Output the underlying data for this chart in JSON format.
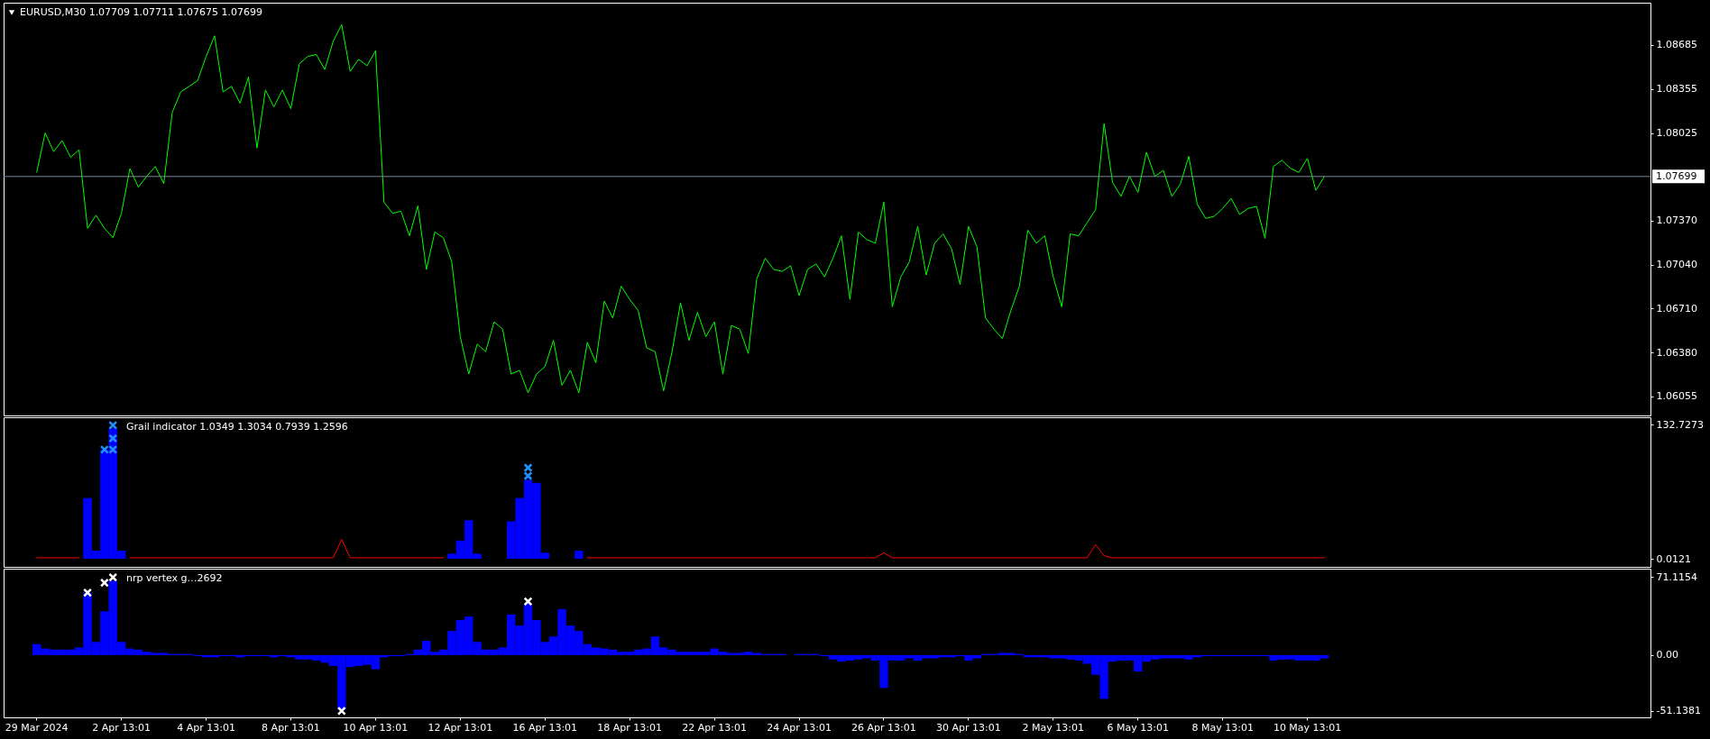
{
  "chart_data": [
    {
      "type": "line",
      "title": "EURUSD,M30 1.07709 1.07711 1.07675 1.07699",
      "categories": [
        null,
        null,
        null,
        null,
        null,
        null,
        null,
        null,
        null,
        null,
        null,
        null,
        null,
        null,
        null,
        null,
        null,
        null,
        null,
        null,
        null,
        null,
        null,
        null,
        null,
        null,
        null,
        null,
        null,
        null,
        null,
        null,
        null,
        null,
        null,
        null,
        null,
        null,
        null,
        null,
        null,
        null,
        null,
        null,
        null,
        null,
        null,
        null,
        null,
        null,
        null,
        null,
        null,
        null,
        null,
        null,
        null,
        null,
        null,
        null,
        null,
        null,
        null,
        null,
        null,
        null,
        null,
        null,
        null,
        null,
        null,
        null,
        null,
        null,
        null,
        null,
        null,
        null,
        null,
        null,
        null,
        null,
        null,
        null,
        null,
        null,
        null,
        null,
        null,
        null,
        null,
        null,
        null,
        null,
        null,
        null,
        null,
        null,
        null,
        null,
        null,
        null,
        null,
        null,
        null,
        null,
        null,
        null,
        null,
        null,
        null,
        null,
        null,
        null,
        null,
        null,
        null,
        null,
        null,
        null,
        null,
        null,
        null,
        null,
        null,
        null,
        null,
        null,
        null,
        null,
        null,
        null,
        null,
        null,
        null,
        null,
        null,
        null,
        null,
        null,
        null,
        null,
        null,
        null,
        null,
        null,
        null,
        null,
        null,
        null,
        null,
        null,
        null,
        null,
        null,
        null,
        null,
        null,
        null,
        null,
        null,
        null,
        null,
        null,
        null,
        null,
        null,
        null,
        null,
        null,
        null,
        null,
        null,
        null,
        null,
        null,
        null,
        null,
        null,
        null,
        null,
        null,
        null,
        null,
        null,
        null,
        null,
        null,
        null,
        null,
        null
      ],
      "series": [
        {
          "color": "#00ff00",
          "values": [
            1.07731,
            1.08025,
            1.07885,
            1.07968,
            1.07843,
            1.07899,
            1.07311,
            1.07409,
            1.07311,
            1.07241,
            1.07423,
            1.07758,
            1.07619,
            1.07702,
            1.07773,
            1.07646,
            1.08178,
            1.08332,
            1.08374,
            1.08417,
            1.08598,
            1.08752,
            1.08332,
            1.08374,
            1.08248,
            1.08444,
            1.07912,
            1.08346,
            1.0822,
            1.08346,
            1.08207,
            1.08543,
            1.08598,
            1.08612,
            1.085,
            1.0871,
            1.08836,
            1.08486,
            1.08576,
            1.08528,
            1.0864,
            1.07507,
            1.07423,
            1.07439,
            1.07255,
            1.07479,
            1.07003,
            1.07283,
            1.07241,
            1.07059,
            1.065,
            1.0622,
            1.06444,
            1.06388,
            1.06611,
            1.06556,
            1.0622,
            1.06248,
            1.0608,
            1.0622,
            1.06276,
            1.06472,
            1.06136,
            1.06248,
            1.0608,
            1.06458,
            1.06304,
            1.06766,
            1.0664,
            1.06877,
            1.06779,
            1.06696,
            1.06416,
            1.06388,
            1.06094,
            1.06388,
            1.06752,
            1.06472,
            1.06682,
            1.065,
            1.06611,
            1.0622,
            1.06584,
            1.06556,
            1.06374,
            1.06933,
            1.07087,
            1.07003,
            1.06989,
            1.07031,
            1.06808,
            1.07003,
            1.07045,
            1.06947,
            1.07087,
            1.07255,
            1.06779,
            1.07283,
            1.07227,
            1.07199,
            1.07507,
            1.06723,
            1.06947,
            1.07059,
            1.07325,
            1.06962,
            1.07199,
            1.07269,
            1.07157,
            1.06891,
            1.07325,
            1.07171,
            1.0664,
            1.06556,
            1.06486,
            1.06696,
            1.06877,
            1.07297,
            1.07199,
            1.07255,
            1.06947,
            1.06723,
            1.07269,
            1.07255,
            1.07353,
            1.07451,
            1.08095,
            1.07655,
            1.0755,
            1.077,
            1.0758,
            1.0788,
            1.077,
            1.07745,
            1.0755,
            1.07641,
            1.0785,
            1.0749,
            1.07385,
            1.07401,
            1.0746,
            1.07535,
            1.07415,
            1.0746,
            1.07475,
            1.07236,
            1.07775,
            1.0782,
            1.0776,
            1.0773,
            1.07835,
            1.07595,
            1.07699,
            null,
            null,
            null,
            null,
            null,
            null,
            null,
            null,
            null,
            null,
            null,
            null,
            null,
            null,
            null,
            null,
            null,
            null,
            null,
            null,
            null,
            null,
            null,
            null,
            null,
            null,
            null,
            null,
            null,
            null,
            null,
            null,
            null,
            null,
            null,
            null,
            null,
            null
          ]
        }
      ],
      "ylim": [
        1.0591,
        1.09
      ],
      "yticks": [
        1.08685,
        1.08355,
        1.08025,
        {
          "value": 1.0737,
          "label": "1.07370"
        },
        {
          "value": 1.0704,
          "label": "1.07040"
        },
        {
          "value": 1.0671,
          "label": "1.06710"
        },
        {
          "value": 1.0638,
          "label": "1.06380"
        },
        1.06055
      ],
      "ref_lines": [
        {
          "axis": "y",
          "value": 1.07699,
          "label": "1.07699",
          "color": "#778899"
        }
      ]
    },
    {
      "type": "bar",
      "title": "Grail indicator 1.0349 1.3034 0.7939 1.2596",
      "categories": [
        null,
        null,
        null,
        null,
        null,
        null,
        null,
        null,
        null,
        null,
        null,
        null,
        null,
        null,
        null,
        null,
        null,
        null,
        null,
        null,
        null,
        null,
        null,
        null,
        null,
        null,
        null,
        null,
        null,
        null,
        null,
        null,
        null,
        null,
        null,
        null,
        null,
        null,
        null,
        null,
        null,
        null,
        null,
        null,
        null,
        null,
        null,
        null,
        null,
        null,
        null,
        null,
        null,
        null,
        null,
        null,
        null,
        null,
        null,
        null,
        null,
        null,
        null,
        null,
        null,
        null,
        null,
        null,
        null,
        null,
        null,
        null,
        null,
        null,
        null,
        null,
        null,
        null,
        null,
        null,
        null,
        null,
        null,
        null,
        null,
        null,
        null,
        null,
        null,
        null,
        null,
        null,
        null,
        null,
        null,
        null,
        null,
        null,
        null,
        null,
        null,
        null,
        null,
        null,
        null,
        null,
        null,
        null,
        null,
        null,
        null,
        null,
        null,
        null,
        null,
        null,
        null,
        null,
        null,
        null,
        null,
        null,
        null,
        null,
        null,
        null,
        null,
        null,
        null,
        null,
        null,
        null,
        null,
        null,
        null,
        null,
        null,
        null,
        null,
        null,
        null,
        null,
        null,
        null,
        null,
        null,
        null,
        null,
        null,
        null,
        null,
        null,
        null,
        null,
        null,
        null,
        null,
        null,
        null,
        null,
        null,
        null,
        null,
        null,
        null,
        null,
        null,
        null,
        null,
        null,
        null,
        null,
        null,
        null,
        null,
        null,
        null,
        null,
        null,
        null,
        null,
        null,
        null,
        null,
        null,
        null,
        null,
        null,
        null,
        null,
        null
      ],
      "series": [
        {
          "color": "#0000ff",
          "values": [
            null,
            null,
            null,
            null,
            null,
            null,
            60,
            8,
            108,
            129,
            8,
            null,
            null,
            null,
            null,
            null,
            null,
            null,
            null,
            null,
            null,
            null,
            null,
            null,
            null,
            null,
            null,
            null,
            null,
            null,
            null,
            null,
            null,
            null,
            null,
            null,
            null,
            null,
            null,
            null,
            null,
            null,
            null,
            null,
            null,
            null,
            null,
            null,
            null,
            5,
            18,
            38,
            5,
            null,
            null,
            null,
            37,
            60,
            78,
            75,
            6,
            null,
            null,
            null,
            8,
            null,
            null,
            null,
            null,
            null,
            null,
            null,
            null,
            null,
            null,
            null,
            null,
            null,
            null,
            null,
            null,
            null,
            null,
            null,
            null,
            null,
            null,
            null,
            null,
            null,
            null,
            null,
            null,
            null,
            null,
            null,
            null,
            null,
            null,
            null,
            null,
            null,
            null,
            null,
            null,
            null,
            null,
            null,
            null,
            null,
            null,
            null,
            null,
            null,
            null,
            null,
            null,
            null,
            null,
            null,
            null,
            null,
            null,
            null,
            null,
            null,
            null,
            null,
            null,
            null,
            null,
            null,
            null,
            null,
            null,
            null,
            null,
            null,
            null,
            null,
            null,
            null,
            null,
            null,
            null,
            null,
            null,
            null,
            null,
            null,
            null,
            null,
            null,
            null,
            null,
            null,
            null,
            null,
            null,
            null,
            null,
            null,
            null,
            null,
            null,
            null,
            null,
            null,
            null,
            null,
            null,
            null,
            null,
            null,
            null,
            null,
            null,
            null,
            null,
            null,
            null,
            null,
            null,
            null,
            null,
            null,
            null,
            null,
            null,
            null,
            null
          ]
        },
        {
          "type": "line",
          "color": "#ff0000",
          "values": [
            1,
            1,
            1,
            1,
            1,
            1,
            null,
            null,
            null,
            null,
            null,
            1,
            1,
            1,
            1,
            1,
            1,
            1,
            1,
            1,
            1,
            1,
            1,
            1,
            1,
            1,
            1,
            1,
            1,
            1,
            1,
            1,
            1,
            1,
            1,
            1,
            19,
            1,
            1,
            1,
            1,
            1,
            1,
            1,
            1,
            1,
            1,
            1,
            1,
            null,
            null,
            null,
            null,
            null,
            null,
            null,
            null,
            null,
            null,
            null,
            null,
            null,
            null,
            null,
            null,
            1,
            1,
            1,
            1,
            1,
            1,
            1,
            1,
            1,
            1,
            1,
            1,
            1,
            1,
            1,
            1,
            1,
            1,
            1,
            1,
            1,
            1,
            1,
            1,
            1,
            1,
            1,
            1,
            1,
            1,
            1,
            1,
            1,
            1,
            1,
            6,
            1,
            1,
            1,
            1,
            1,
            1,
            1,
            1,
            1,
            1,
            1,
            1,
            1,
            1,
            1,
            1,
            1,
            1,
            1,
            1,
            1,
            1,
            1,
            1,
            14,
            3,
            1,
            1,
            1,
            1,
            1,
            1,
            1,
            1,
            1,
            1,
            1,
            1,
            1,
            1,
            1,
            1,
            1,
            1,
            1,
            1,
            1,
            1,
            1,
            1,
            1,
            1,
            null,
            null,
            null,
            null,
            null,
            null,
            null,
            null,
            null,
            null,
            null,
            null,
            null,
            null,
            null,
            null,
            null,
            null,
            null,
            null,
            null,
            null,
            null,
            null,
            null,
            null,
            null,
            null,
            null,
            null,
            null,
            null,
            null,
            null,
            null,
            null,
            null,
            null
          ]
        },
        {
          "type": "scatter",
          "marker": "cross",
          "color": "#1e90ff",
          "values": [
            null,
            null,
            null,
            null,
            null,
            null,
            null,
            null,
            108,
            108,
            null,
            null,
            null,
            null,
            null,
            null,
            null,
            null,
            null,
            null,
            null,
            null,
            null,
            null,
            null,
            null,
            null,
            null,
            null,
            null,
            null,
            null,
            null,
            null,
            null,
            null,
            null,
            null,
            null,
            null,
            null,
            null,
            null,
            null,
            null,
            null,
            null,
            null,
            null,
            null,
            null,
            null,
            null,
            null,
            null,
            null,
            null,
            null,
            82,
            null,
            null,
            null,
            null,
            null,
            null,
            null,
            null,
            null,
            null,
            null,
            null,
            null,
            null,
            null,
            null,
            null,
            null,
            null,
            null,
            null,
            null,
            null,
            null,
            null,
            null,
            null,
            null,
            null,
            null,
            null,
            null,
            null,
            null,
            null,
            null,
            null,
            null,
            null,
            null,
            null,
            null,
            null,
            null,
            null,
            null,
            null,
            null,
            null,
            null,
            null,
            null,
            null,
            null,
            null,
            null,
            null,
            null,
            null,
            null,
            null,
            null,
            null,
            null,
            null,
            null,
            null,
            null,
            null,
            null,
            null,
            null,
            null,
            null,
            null,
            null,
            null,
            null,
            null,
            null,
            null,
            null,
            null,
            null,
            null,
            null,
            null,
            null,
            null,
            null,
            null,
            null,
            null,
            null,
            null,
            null,
            null,
            null,
            null,
            null,
            null,
            null,
            null,
            null,
            null,
            null,
            null,
            null,
            null,
            null,
            null,
            null,
            null,
            null,
            null,
            null,
            null,
            null,
            null,
            null,
            null,
            null,
            null,
            null,
            null,
            null,
            null,
            null,
            null,
            null,
            null,
            null
          ]
        },
        {
          "type": "scatter",
          "marker": "cross",
          "color": "#1e90ff",
          "values": [
            null,
            null,
            null,
            null,
            null,
            null,
            null,
            null,
            null,
            119,
            null,
            null,
            null,
            null,
            null,
            null,
            null,
            null,
            null,
            null,
            null,
            null,
            null,
            null,
            null,
            null,
            null,
            null,
            null,
            null,
            null,
            null,
            null,
            null,
            null,
            null,
            null,
            null,
            null,
            null,
            null,
            null,
            null,
            null,
            null,
            null,
            null,
            null,
            null,
            null,
            null,
            null,
            null,
            null,
            null,
            null,
            null,
            null,
            90,
            null,
            null,
            null,
            null,
            null,
            null,
            null,
            null,
            null,
            null,
            null,
            null,
            null,
            null,
            null,
            null,
            null,
            null,
            null,
            null,
            null,
            null,
            null,
            null,
            null,
            null,
            null,
            null,
            null,
            null,
            null,
            null,
            null,
            null,
            null,
            null,
            null,
            null,
            null,
            null,
            null,
            null,
            null,
            null,
            null,
            null,
            null,
            null,
            null,
            null,
            null,
            null,
            null,
            null,
            null,
            null,
            null,
            null,
            null,
            null,
            null,
            null,
            null,
            null,
            null,
            null,
            null,
            null,
            null,
            null,
            null,
            null,
            null,
            null,
            null,
            null,
            null,
            null,
            null,
            null,
            null,
            null,
            null,
            null,
            null,
            null,
            null,
            null,
            null,
            null,
            null,
            null,
            null,
            null,
            null,
            null,
            null,
            null,
            null,
            null,
            null,
            null,
            null,
            null,
            null,
            null,
            null,
            null,
            null,
            null,
            null,
            null,
            null,
            null,
            null,
            null,
            null,
            null,
            null,
            null,
            null,
            null,
            null,
            null,
            null,
            null,
            null,
            null,
            null,
            null,
            null,
            null
          ]
        },
        {
          "type": "scatter",
          "marker": "cross",
          "color": "#1e90ff",
          "values": [
            null,
            null,
            null,
            null,
            null,
            null,
            null,
            null,
            null,
            132,
            null,
            null,
            null,
            null,
            null,
            null,
            null,
            null,
            null,
            null,
            null,
            null,
            null,
            null,
            null,
            null,
            null,
            null,
            null,
            null,
            null,
            null,
            null,
            null,
            null,
            null,
            null,
            null,
            null,
            null,
            null,
            null,
            null,
            null,
            null,
            null,
            null,
            null,
            null,
            null,
            null,
            null,
            null,
            null,
            null,
            null,
            null,
            null,
            null,
            null,
            null,
            null,
            null,
            null,
            null,
            null,
            null,
            null,
            null,
            null,
            null,
            null,
            null,
            null,
            null,
            null,
            null,
            null,
            null,
            null,
            null,
            null,
            null,
            null,
            null,
            null,
            null,
            null,
            null,
            null,
            null,
            null,
            null,
            null,
            null,
            null,
            null,
            null,
            null,
            null,
            null,
            null,
            null,
            null,
            null,
            null,
            null,
            null,
            null,
            null,
            null,
            null,
            null,
            null,
            null,
            null,
            null,
            null,
            null,
            null,
            null,
            null,
            null,
            null,
            null,
            null,
            null,
            null,
            null,
            null,
            null,
            null,
            null,
            null,
            null,
            null,
            null,
            null,
            null,
            null,
            null,
            null,
            null,
            null,
            null,
            null,
            null,
            null,
            null,
            null,
            null,
            null,
            null,
            null,
            null,
            null,
            null,
            null,
            null,
            null,
            null,
            null,
            null,
            null,
            null,
            null,
            null,
            null,
            null,
            null,
            null,
            null,
            null,
            null,
            null,
            null,
            null,
            null,
            null,
            null,
            null,
            null,
            null,
            null,
            null,
            null,
            null,
            null,
            null,
            null,
            null
          ]
        }
      ],
      "ylim": [
        -8,
        139.9
      ],
      "yticks": [
        0.0121,
        132.7273
      ]
    },
    {
      "type": "bar",
      "title": "nrp vertex g…2692",
      "categories": [
        "29 Mar 2024",
        null,
        null,
        null,
        null,
        null,
        null,
        null,
        null,
        null,
        "2 Apr 13:01",
        null,
        null,
        null,
        null,
        null,
        null,
        null,
        null,
        null,
        "4 Apr 13:01",
        null,
        null,
        null,
        null,
        null,
        null,
        null,
        null,
        null,
        "8 Apr 13:01",
        null,
        null,
        null,
        null,
        null,
        null,
        null,
        null,
        null,
        "10 Apr 13:01",
        null,
        null,
        null,
        null,
        null,
        null,
        null,
        null,
        null,
        "12 Apr 13:01",
        null,
        null,
        null,
        null,
        null,
        null,
        null,
        null,
        null,
        "16 Apr 13:01",
        null,
        null,
        null,
        null,
        null,
        null,
        null,
        null,
        null,
        "18 Apr 13:01",
        null,
        null,
        null,
        null,
        null,
        null,
        null,
        null,
        null,
        "22 Apr 13:01",
        null,
        null,
        null,
        null,
        null,
        null,
        null,
        null,
        null,
        "24 Apr 13:01",
        null,
        null,
        null,
        null,
        null,
        null,
        null,
        null,
        null,
        "26 Apr 13:01",
        null,
        null,
        null,
        null,
        null,
        null,
        null,
        null,
        null,
        "30 Apr 13:01",
        null,
        null,
        null,
        null,
        null,
        null,
        null,
        null,
        null,
        "2 May 13:01",
        null,
        null,
        null,
        null,
        null,
        null,
        null,
        null,
        null,
        "6 May 13:01",
        null,
        null,
        null,
        null,
        null,
        null,
        null,
        null,
        null,
        "8 May 13:01",
        null,
        null,
        null,
        null,
        null,
        null,
        null,
        null,
        null,
        "10 May 13:01",
        null,
        null,
        null,
        null,
        null,
        null,
        null,
        null,
        null,
        null,
        null,
        null,
        null,
        null,
        null,
        null,
        null,
        null,
        null,
        null,
        null,
        null,
        null,
        null,
        null,
        null,
        null,
        null,
        null,
        null,
        null,
        null,
        null,
        null,
        null,
        null,
        null,
        null,
        null,
        null
      ],
      "series": [
        {
          "color": "#0000ff",
          "values": [
            10,
            6,
            5,
            5,
            5,
            7,
            57,
            12,
            40,
            68,
            12,
            6,
            5,
            3,
            2,
            2,
            1,
            1,
            1,
            -1,
            -2,
            -2,
            -1,
            -1,
            -2,
            -1,
            -1,
            -1,
            -2,
            -1,
            -2,
            -4,
            -4,
            -5,
            -7,
            -10,
            -50,
            -11,
            -10,
            -9,
            -13,
            -2,
            -1,
            -1,
            1,
            5,
            13,
            3,
            5,
            22,
            32,
            35,
            12,
            5,
            5,
            7,
            37,
            27,
            47,
            32,
            12,
            17,
            42,
            27,
            22,
            10,
            7,
            6,
            5,
            3,
            3,
            5,
            6,
            17,
            7,
            5,
            3,
            3,
            3,
            3,
            6,
            3,
            2,
            2,
            3,
            2,
            1,
            1,
            1,
            null,
            1,
            1,
            1,
            -1,
            -4,
            -6,
            -5,
            -4,
            -3,
            -5,
            -30,
            -5,
            -5,
            -3,
            -5,
            -3,
            -3,
            -2,
            -2,
            -1,
            -5,
            -3,
            1,
            1,
            2,
            2,
            1,
            -2,
            -2,
            -2,
            -3,
            -3,
            -4,
            -5,
            -8,
            -18,
            -40,
            -6,
            -5,
            -5,
            -15,
            -6,
            -4,
            -3,
            -3,
            -3,
            -4,
            -2,
            -1,
            -1,
            -1,
            -1,
            -1,
            -1,
            -1,
            -1,
            -5,
            -4,
            -4,
            -5,
            -5,
            -5,
            -3,
            null,
            null,
            null,
            null,
            null,
            null,
            null,
            null,
            null,
            null,
            null,
            null,
            null,
            null,
            null,
            null,
            null,
            null,
            null,
            null,
            null,
            null,
            null,
            null,
            null,
            null,
            null,
            null,
            null,
            null,
            null,
            null,
            null,
            null,
            null,
            null,
            null,
            null
          ]
        },
        {
          "type": "scatter",
          "marker": "cross",
          "color": "#ffffff",
          "values": [
            null,
            null,
            null,
            null,
            null,
            null,
            57,
            null,
            66,
            71,
            null,
            null,
            null,
            null,
            null,
            null,
            null,
            null,
            null,
            null,
            null,
            null,
            null,
            null,
            null,
            null,
            null,
            null,
            null,
            null,
            null,
            null,
            null,
            null,
            null,
            null,
            -51,
            null,
            null,
            null,
            null,
            null,
            null,
            null,
            null,
            null,
            null,
            null,
            null,
            null,
            null,
            null,
            null,
            null,
            null,
            null,
            null,
            null,
            49,
            null,
            null,
            null,
            null,
            null,
            null,
            null,
            null,
            null,
            null,
            null,
            null,
            null,
            null,
            null,
            null,
            null,
            null,
            null,
            null,
            null,
            null,
            null,
            null,
            null,
            null,
            null,
            null,
            null,
            null,
            null,
            null,
            null,
            null,
            null,
            null,
            null,
            null,
            null,
            null,
            null,
            null,
            null,
            null,
            null,
            null,
            null,
            null,
            null,
            null,
            null,
            null,
            null,
            null,
            null,
            null,
            null,
            null,
            null,
            null,
            null,
            null,
            null,
            null,
            null,
            null,
            null,
            null,
            null,
            null,
            null,
            null,
            null,
            null,
            null,
            null,
            null,
            null,
            null,
            null,
            null,
            null,
            null,
            null,
            null,
            null,
            null,
            null,
            null,
            null,
            null,
            null,
            null,
            null,
            null,
            null,
            null,
            null,
            null,
            null,
            null,
            null,
            null,
            null,
            null,
            null,
            null,
            null,
            null,
            null,
            null,
            null,
            null,
            null,
            null,
            null,
            null,
            null,
            null,
            null,
            null,
            null,
            null,
            null,
            null,
            null,
            null,
            null,
            null,
            null,
            null,
            null
          ]
        }
      ],
      "ylim": [
        -56.9,
        78.9
      ],
      "yticks": [
        -51.1381,
        {
          "value": 0,
          "label": "0.00"
        },
        71.1154
      ]
    }
  ]
}
